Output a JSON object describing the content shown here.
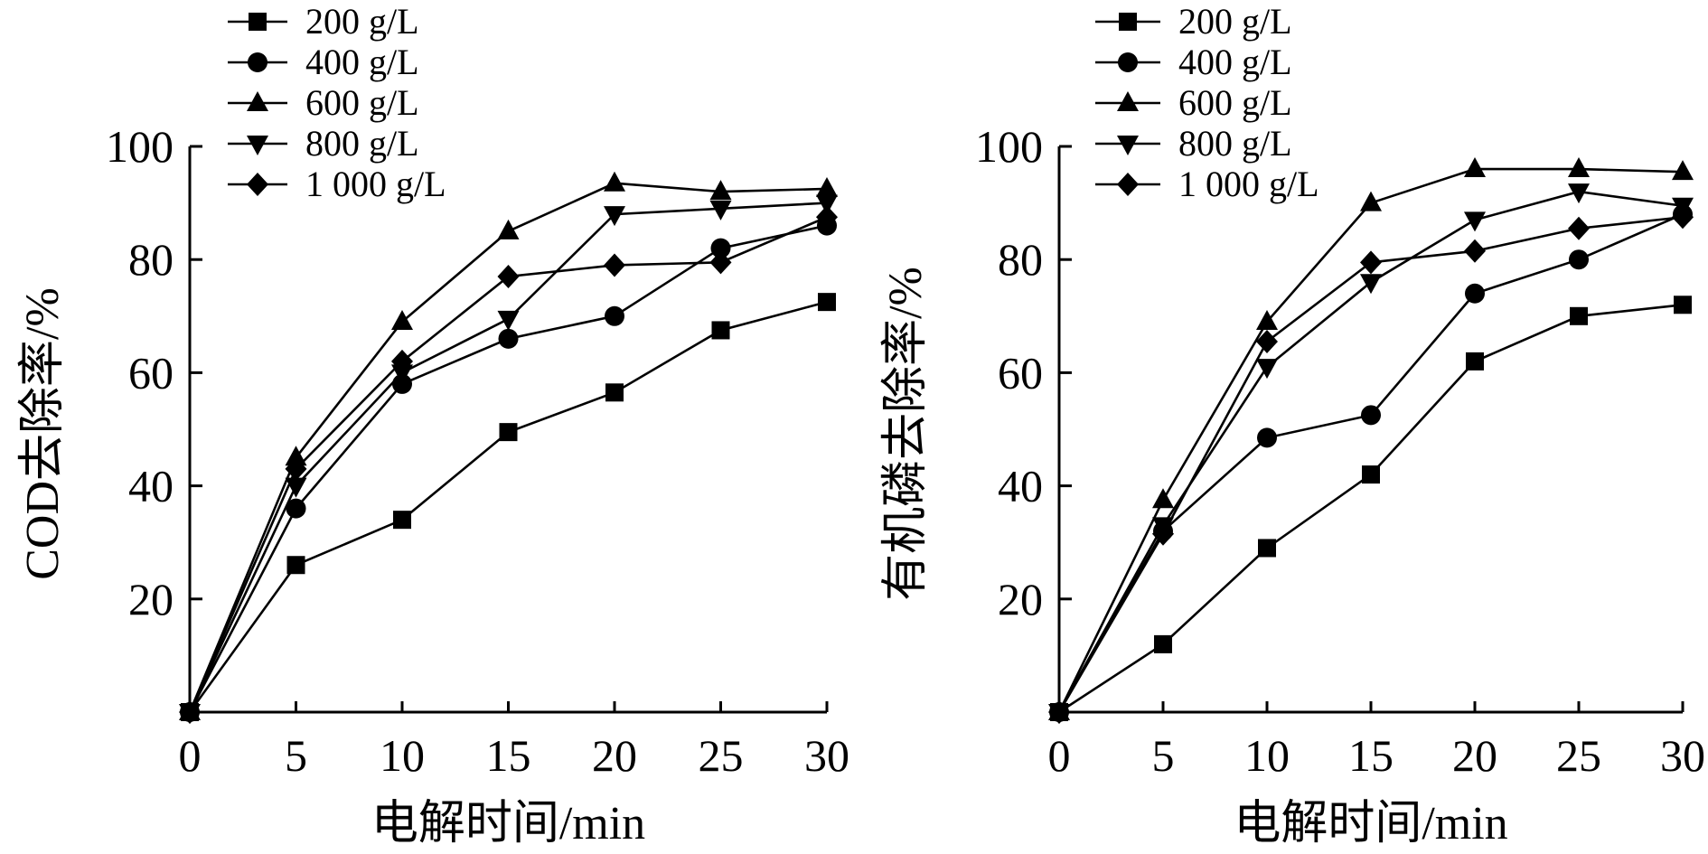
{
  "chart_data": [
    {
      "type": "line",
      "title": "",
      "xlabel": "电解时间/min",
      "ylabel": "COD去除率/%",
      "x": [
        0,
        5,
        10,
        15,
        20,
        25,
        30
      ],
      "xticks": [
        "0",
        "5",
        "10",
        "15",
        "20",
        "25",
        "30"
      ],
      "yticks": [
        "20",
        "40",
        "60",
        "80",
        "100"
      ],
      "xlim": [
        0,
        30
      ],
      "ylim": [
        0,
        100
      ],
      "legend_position": "top-left",
      "series": [
        {
          "name": "200 g/L",
          "marker": "square",
          "values": [
            0,
            26,
            34,
            49.5,
            56.5,
            67.5,
            72.5
          ]
        },
        {
          "name": "400 g/L",
          "marker": "circle",
          "values": [
            0,
            36,
            58,
            66,
            70,
            82,
            86
          ]
        },
        {
          "name": "600 g/L",
          "marker": "triangle-up",
          "values": [
            0,
            45,
            69,
            85,
            93.5,
            92,
            92.5
          ]
        },
        {
          "name": "800 g/L",
          "marker": "triangle-down",
          "values": [
            0,
            40,
            60,
            69.5,
            88,
            89,
            90
          ]
        },
        {
          "name": "1 000 g/L",
          "marker": "diamond",
          "values": [
            0,
            43,
            62,
            77,
            79,
            79.5,
            87.5
          ]
        }
      ]
    },
    {
      "type": "line",
      "title": "",
      "xlabel": "电解时间/min",
      "ylabel": "有机磷去除率/%",
      "x": [
        0,
        5,
        10,
        15,
        20,
        25,
        30
      ],
      "xticks": [
        "0",
        "5",
        "10",
        "15",
        "20",
        "25",
        "30"
      ],
      "yticks": [
        "20",
        "40",
        "60",
        "80",
        "100"
      ],
      "xlim": [
        0,
        30
      ],
      "ylim": [
        0,
        100
      ],
      "legend_position": "top-left",
      "series": [
        {
          "name": "200 g/L",
          "marker": "square",
          "values": [
            0,
            12,
            29,
            42,
            62,
            70,
            72
          ]
        },
        {
          "name": "400 g/L",
          "marker": "circle",
          "values": [
            0,
            32,
            48.5,
            52.5,
            74,
            80,
            88
          ]
        },
        {
          "name": "600 g/L",
          "marker": "triangle-up",
          "values": [
            0,
            37.5,
            69,
            90,
            96,
            96,
            95.5
          ]
        },
        {
          "name": "800 g/L",
          "marker": "triangle-down",
          "values": [
            0,
            33,
            61,
            76,
            87,
            92,
            89.5
          ]
        },
        {
          "name": "1 000 g/L",
          "marker": "diamond",
          "values": [
            0,
            31.5,
            65.5,
            79.5,
            81.5,
            85.5,
            87.5
          ]
        }
      ]
    }
  ]
}
